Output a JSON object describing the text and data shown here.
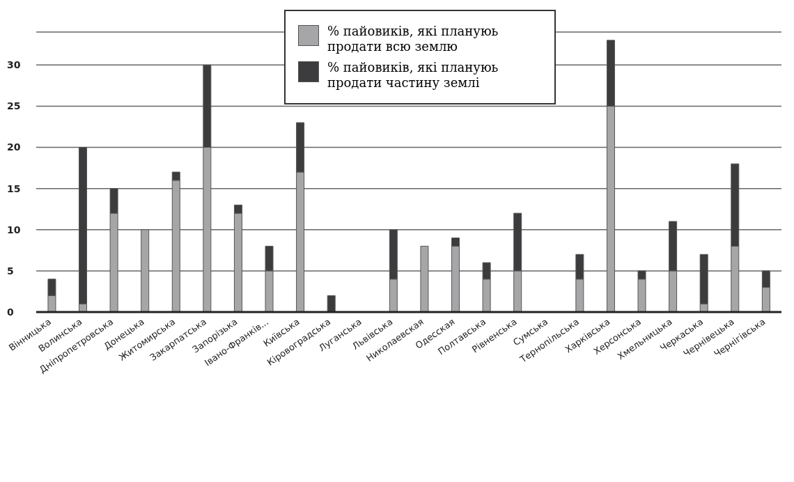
{
  "chart_data": {
    "type": "bar",
    "stacked": true,
    "categories": [
      "Вінницька",
      "Волинська",
      "Дніпропетровська",
      "Донецька",
      "Житомирська",
      "Закарпатська",
      "Запорізька",
      "Івано-Франків...",
      "Київська",
      "Кіровоградська",
      "Луганська",
      "Львівська",
      "Николаевская",
      "Одесская",
      "Полтавська",
      "Рівненська",
      "Сумська",
      "Тернопільська",
      "Харківська",
      "Херсонська",
      "Хмельницька",
      "Черкаська",
      "Чернівецька",
      "Чернігівська"
    ],
    "series": [
      {
        "name": "% пайовиків, які плануюь продати всю землю",
        "color": "#a6a6a8",
        "values": [
          2,
          1,
          12,
          10,
          16,
          20,
          12,
          5,
          17,
          0,
          0,
          4,
          8,
          8,
          4,
          5,
          0,
          4,
          25,
          4,
          5,
          1,
          8,
          3
        ]
      },
      {
        "name": "% пайовиків, які плануюь продати частину землі",
        "color": "#3c3c3e",
        "values": [
          2,
          19,
          3,
          0,
          1,
          10,
          1,
          3,
          6,
          2,
          0,
          6,
          0,
          1,
          2,
          7,
          0,
          3,
          8,
          1,
          6,
          6,
          10,
          2
        ]
      }
    ],
    "ylim": [
      0,
      34
    ],
    "yticks": [
      0,
      5,
      10,
      15,
      20,
      25,
      30
    ],
    "grid": "y",
    "legend": "top"
  }
}
